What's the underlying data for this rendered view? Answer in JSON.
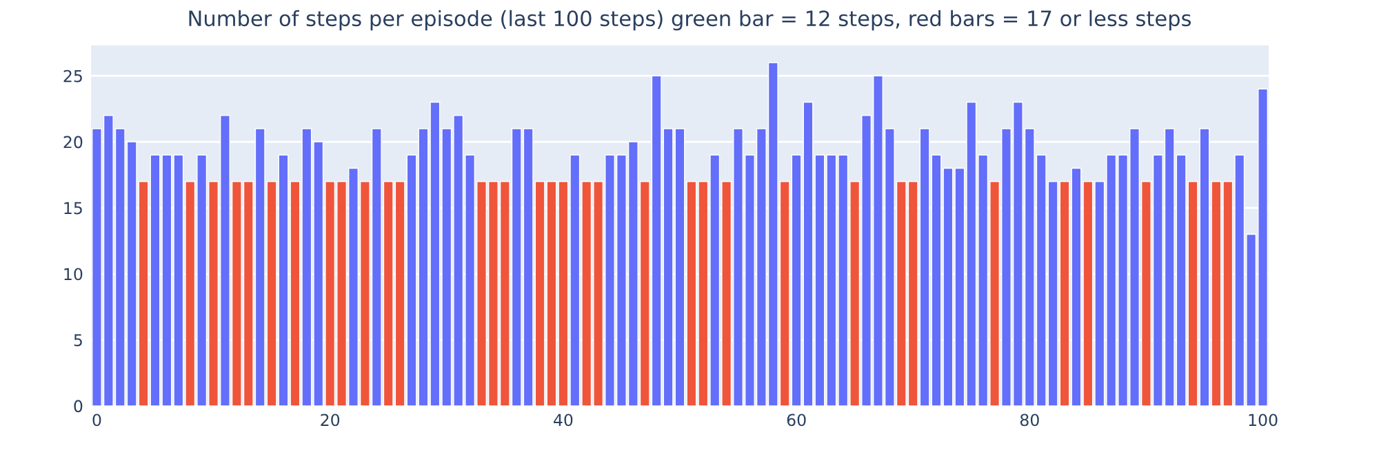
{
  "chart_data": {
    "type": "bar",
    "title": "Number of steps per episode (last 100 steps) green bar = 12 steps, red bars = 17 or less steps",
    "x": [
      0,
      1,
      2,
      3,
      4,
      5,
      6,
      7,
      8,
      9,
      10,
      11,
      12,
      13,
      14,
      15,
      16,
      17,
      18,
      19,
      20,
      21,
      22,
      23,
      24,
      25,
      26,
      27,
      28,
      29,
      30,
      31,
      32,
      33,
      34,
      35,
      36,
      37,
      38,
      39,
      40,
      41,
      42,
      43,
      44,
      45,
      46,
      47,
      48,
      49,
      50,
      51,
      52,
      53,
      54,
      55,
      56,
      57,
      58,
      59,
      60,
      61,
      62,
      63,
      64,
      65,
      66,
      67,
      68,
      69,
      70,
      71,
      72,
      73,
      74,
      75,
      76,
      77,
      78,
      79,
      80,
      81,
      82,
      83,
      84,
      85,
      86,
      87,
      88,
      89,
      90,
      91,
      92,
      93,
      94,
      95,
      96,
      97,
      98,
      99,
      100
    ],
    "values": [
      21,
      22,
      21,
      20,
      17,
      19,
      19,
      19,
      17,
      19,
      17,
      22,
      17,
      17,
      21,
      17,
      19,
      17,
      21,
      20,
      17,
      17,
      18,
      17,
      21,
      17,
      17,
      19,
      21,
      23,
      21,
      22,
      19,
      17,
      17,
      17,
      21,
      21,
      17,
      17,
      17,
      19,
      17,
      17,
      19,
      19,
      20,
      17,
      25,
      21,
      21,
      17,
      17,
      19,
      17,
      21,
      19,
      21,
      26,
      17,
      19,
      23,
      19,
      19,
      19,
      17,
      22,
      25,
      21,
      17,
      17,
      21,
      19,
      18,
      18,
      23,
      19,
      17,
      21,
      23,
      21,
      19,
      17,
      17,
      18,
      17,
      17,
      19,
      19,
      21,
      17,
      19,
      21,
      19,
      17,
      21,
      17,
      17,
      19,
      13,
      24
    ],
    "colors": [
      "#636efa",
      "#636efa",
      "#636efa",
      "#636efa",
      "#ef553b",
      "#636efa",
      "#636efa",
      "#636efa",
      "#ef553b",
      "#636efa",
      "#ef553b",
      "#636efa",
      "#ef553b",
      "#ef553b",
      "#636efa",
      "#ef553b",
      "#636efa",
      "#ef553b",
      "#636efa",
      "#636efa",
      "#ef553b",
      "#ef553b",
      "#636efa",
      "#ef553b",
      "#636efa",
      "#ef553b",
      "#ef553b",
      "#636efa",
      "#636efa",
      "#636efa",
      "#636efa",
      "#636efa",
      "#636efa",
      "#ef553b",
      "#ef553b",
      "#ef553b",
      "#636efa",
      "#636efa",
      "#ef553b",
      "#ef553b",
      "#ef553b",
      "#636efa",
      "#ef553b",
      "#ef553b",
      "#636efa",
      "#636efa",
      "#636efa",
      "#ef553b",
      "#636efa",
      "#636efa",
      "#636efa",
      "#ef553b",
      "#ef553b",
      "#636efa",
      "#ef553b",
      "#636efa",
      "#636efa",
      "#636efa",
      "#636efa",
      "#ef553b",
      "#636efa",
      "#636efa",
      "#636efa",
      "#636efa",
      "#636efa",
      "#ef553b",
      "#636efa",
      "#636efa",
      "#636efa",
      "#ef553b",
      "#ef553b",
      "#636efa",
      "#636efa",
      "#636efa",
      "#636efa",
      "#636efa",
      "#636efa",
      "#ef553b",
      "#636efa",
      "#636efa",
      "#636efa",
      "#636efa",
      "#636efa",
      "#ef553b",
      "#636efa",
      "#ef553b",
      "#636efa",
      "#636efa",
      "#636efa",
      "#636efa",
      "#ef553b",
      "#636efa",
      "#636efa",
      "#636efa",
      "#ef553b",
      "#636efa",
      "#ef553b",
      "#ef553b",
      "#636efa",
      "#636efa",
      "#636efa"
    ],
    "xlim": [
      -0.5,
      100.5
    ],
    "xticks": [
      0,
      20,
      40,
      60,
      80,
      100
    ],
    "ylim": [
      0,
      27.3
    ],
    "yticks": [
      0,
      5,
      10,
      15,
      20,
      25
    ],
    "grid": "y"
  }
}
